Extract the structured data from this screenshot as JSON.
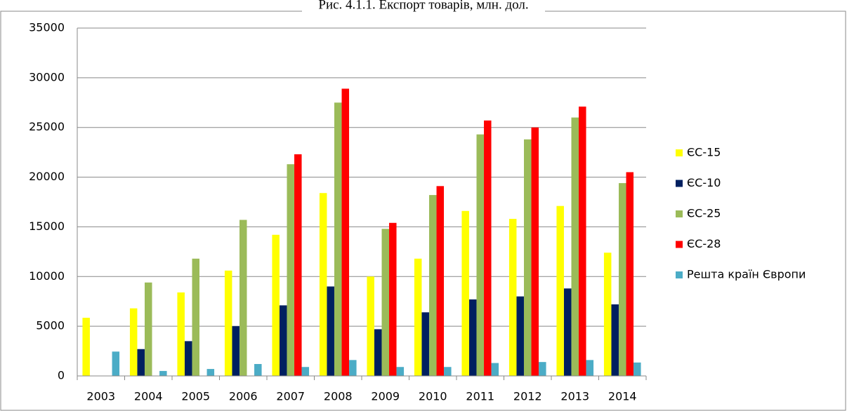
{
  "chart_data": {
    "type": "bar",
    "title": "Рис. 4.1.1. Експорт товарів, млн. дол.",
    "categories": [
      "2003",
      "2004",
      "2005",
      "2006",
      "2007",
      "2008",
      "2009",
      "2010",
      "2011",
      "2012",
      "2013",
      "2014"
    ],
    "series": [
      {
        "name": "ЄС-15",
        "color": "#ffff00",
        "values": [
          5850,
          6800,
          8400,
          10600,
          14200,
          18400,
          10000,
          11800,
          16600,
          15800,
          17100,
          12400
        ]
      },
      {
        "name": "ЄС-10",
        "color": "#002060",
        "values": [
          null,
          2700,
          3500,
          5000,
          7100,
          9000,
          4700,
          6400,
          7700,
          8000,
          8800,
          7200
        ]
      },
      {
        "name": "ЄС-25",
        "color": "#9bbb59",
        "values": [
          null,
          9400,
          11800,
          15700,
          21300,
          27500,
          14800,
          18200,
          24300,
          23800,
          26000,
          19400
        ]
      },
      {
        "name": "ЄС-28",
        "color": "#ff0000",
        "values": [
          null,
          null,
          null,
          null,
          22300,
          28900,
          15400,
          19100,
          25700,
          25000,
          27100,
          20500
        ]
      },
      {
        "name": "Решта країн Європи",
        "color": "#4bacc6",
        "values": [
          2450,
          500,
          700,
          1200,
          900,
          1600,
          900,
          900,
          1300,
          1400,
          1600,
          1350
        ]
      }
    ],
    "ylim": [
      0,
      35000
    ],
    "yticks": [
      0,
      5000,
      10000,
      15000,
      20000,
      25000,
      30000,
      35000
    ],
    "grid": true,
    "legend": "right"
  }
}
